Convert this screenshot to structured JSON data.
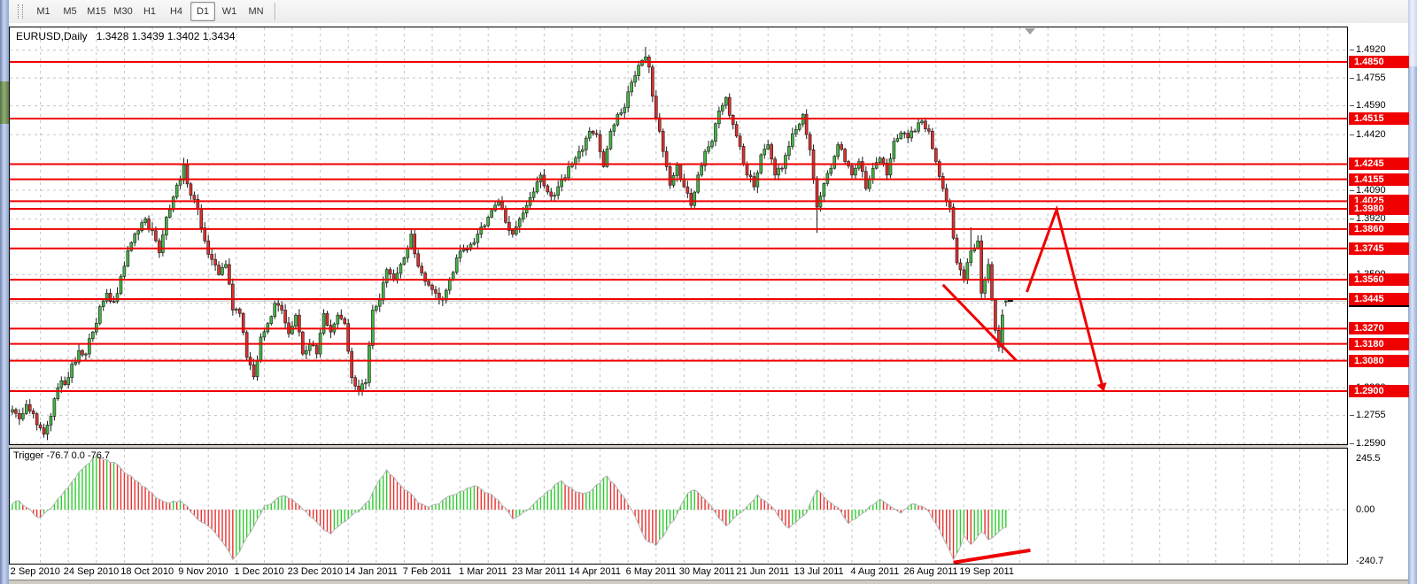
{
  "toolbar": {
    "buttons": [
      "M1",
      "M5",
      "M15",
      "M30",
      "H1",
      "H4",
      "D1",
      "W1",
      "MN"
    ],
    "active": "D1"
  },
  "header": {
    "symbol_label": "EURUSD,Daily",
    "ohlc_text": "1.3428 1.3439 1.3402 1.3434"
  },
  "chart_data": {
    "type": "candlestick",
    "symbol": "EURUSD",
    "timeframe": "Daily",
    "current_bar": {
      "open": 1.3428,
      "high": 1.3439,
      "low": 1.3402,
      "close": 1.3434
    },
    "x_labels": [
      "2 Sep 2010",
      "24 Sep 2010",
      "18 Oct 2010",
      "9 Nov 2010",
      "1 Dec 2010",
      "23 Dec 2010",
      "14 Jan 2011",
      "7 Feb 2011",
      "1 Mar 2011",
      "23 Mar 2011",
      "14 Apr 2011",
      "6 May 2011",
      "30 May 2011",
      "21 Jun 2011",
      "13 Jul 2011",
      "4 Aug 2011",
      "26 Aug 2011",
      "19 Sep 2011"
    ],
    "y_axis": {
      "plain_labels": [
        {
          "text": "1.4920",
          "value": 1.492
        },
        {
          "text": "1.4755",
          "value": 1.4755
        },
        {
          "text": "1.4590",
          "value": 1.459
        },
        {
          "text": "1.4420",
          "value": 1.442
        },
        {
          "text": "1.4090",
          "value": 1.409
        },
        {
          "text": "1.3920",
          "value": 1.392
        },
        {
          "text": "1.3590",
          "value": 1.359
        },
        {
          "text": "1.2920",
          "value": 1.292
        },
        {
          "text": "1.2755",
          "value": 1.2755
        },
        {
          "text": "1.2590",
          "value": 1.259
        }
      ],
      "red_levels": [
        {
          "text": "1.4850",
          "value": 1.485
        },
        {
          "text": "1.4515",
          "value": 1.4515
        },
        {
          "text": "1.4245",
          "value": 1.4245
        },
        {
          "text": "1.4155",
          "value": 1.4155
        },
        {
          "text": "1.4025",
          "value": 1.4025
        },
        {
          "text": "1.3980",
          "value": 1.398
        },
        {
          "text": "1.3860",
          "value": 1.386
        },
        {
          "text": "1.3745",
          "value": 1.3745
        },
        {
          "text": "1.3560",
          "value": 1.356
        },
        {
          "text": "1.3445",
          "value": 1.3445
        },
        {
          "text": "1.3270",
          "value": 1.327
        },
        {
          "text": "1.3180",
          "value": 1.318
        },
        {
          "text": "1.3080",
          "value": 1.308
        },
        {
          "text": "1.2900",
          "value": 1.29
        }
      ],
      "current_price_label": {
        "text": "1.3434",
        "value": 1.3434
      },
      "grid_values": [
        1.492,
        1.4755,
        1.459,
        1.442,
        1.4245,
        1.409,
        1.392,
        1.3745,
        1.359,
        1.342,
        1.327,
        1.309,
        1.292,
        1.2755,
        1.259
      ],
      "price_top": 1.506,
      "price_bottom": 1.258
    },
    "candles": {
      "count": 285,
      "close_pivots": [
        [
          0,
          1.279
        ],
        [
          2,
          1.2735
        ],
        [
          4,
          1.282
        ],
        [
          7,
          1.27
        ],
        [
          9,
          1.2645
        ],
        [
          11,
          1.275
        ],
        [
          13,
          1.292
        ],
        [
          16,
          1.298
        ],
        [
          19,
          1.314
        ],
        [
          21,
          1.312
        ],
        [
          23,
          1.325
        ],
        [
          25,
          1.34
        ],
        [
          27,
          1.348
        ],
        [
          29,
          1.343
        ],
        [
          32,
          1.364
        ],
        [
          34,
          1.378
        ],
        [
          36,
          1.385
        ],
        [
          38,
          1.392
        ],
        [
          40,
          1.385
        ],
        [
          42,
          1.372
        ],
        [
          44,
          1.393
        ],
        [
          46,
          1.405
        ],
        [
          48,
          1.415
        ],
        [
          49,
          1.424
        ],
        [
          51,
          1.406
        ],
        [
          53,
          1.398
        ],
        [
          55,
          1.379
        ],
        [
          57,
          1.368
        ],
        [
          59,
          1.359
        ],
        [
          61,
          1.365
        ],
        [
          63,
          1.338
        ],
        [
          65,
          1.336
        ],
        [
          67,
          1.31
        ],
        [
          69,
          1.2985
        ],
        [
          71,
          1.322
        ],
        [
          73,
          1.33
        ],
        [
          75,
          1.342
        ],
        [
          77,
          1.338
        ],
        [
          79,
          1.324
        ],
        [
          81,
          1.335
        ],
        [
          83,
          1.312
        ],
        [
          85,
          1.318
        ],
        [
          87,
          1.312
        ],
        [
          89,
          1.336
        ],
        [
          91,
          1.325
        ],
        [
          93,
          1.335
        ],
        [
          95,
          1.33
        ],
        [
          97,
          1.298
        ],
        [
          99,
          1.29
        ],
        [
          101,
          1.295
        ],
        [
          103,
          1.338
        ],
        [
          105,
          1.344
        ],
        [
          107,
          1.362
        ],
        [
          109,
          1.356
        ],
        [
          112,
          1.369
        ],
        [
          114,
          1.383
        ],
        [
          116,
          1.364
        ],
        [
          118,
          1.355
        ],
        [
          121,
          1.348
        ],
        [
          123,
          1.344
        ],
        [
          125,
          1.356
        ],
        [
          127,
          1.369
        ],
        [
          129,
          1.374
        ],
        [
          131,
          1.377
        ],
        [
          133,
          1.383
        ],
        [
          135,
          1.388
        ],
        [
          137,
          1.397
        ],
        [
          139,
          1.402
        ],
        [
          141,
          1.39
        ],
        [
          143,
          1.383
        ],
        [
          145,
          1.392
        ],
        [
          147,
          1.4
        ],
        [
          149,
          1.408
        ],
        [
          151,
          1.418
        ],
        [
          153,
          1.408
        ],
        [
          155,
          1.406
        ],
        [
          157,
          1.415
        ],
        [
          159,
          1.423
        ],
        [
          161,
          1.428
        ],
        [
          163,
          1.433
        ],
        [
          165,
          1.444
        ],
        [
          167,
          1.442
        ],
        [
          169,
          1.423
        ],
        [
          171,
          1.444
        ],
        [
          173,
          1.454
        ],
        [
          175,
          1.458
        ],
        [
          177,
          1.473
        ],
        [
          179,
          1.483
        ],
        [
          181,
          1.488
        ],
        [
          182,
          1.482
        ],
        [
          184,
          1.452
        ],
        [
          186,
          1.432
        ],
        [
          188,
          1.412
        ],
        [
          190,
          1.424
        ],
        [
          192,
          1.411
        ],
        [
          194,
          1.4
        ],
        [
          196,
          1.418
        ],
        [
          198,
          1.432
        ],
        [
          200,
          1.438
        ],
        [
          202,
          1.456
        ],
        [
          204,
          1.464
        ],
        [
          206,
          1.448
        ],
        [
          208,
          1.435
        ],
        [
          210,
          1.418
        ],
        [
          212,
          1.411
        ],
        [
          214,
          1.43
        ],
        [
          216,
          1.436
        ],
        [
          218,
          1.418
        ],
        [
          220,
          1.422
        ],
        [
          222,
          1.435
        ],
        [
          224,
          1.445
        ],
        [
          226,
          1.454
        ],
        [
          228,
          1.433
        ],
        [
          230,
          1.399
        ],
        [
          232,
          1.413
        ],
        [
          234,
          1.422
        ],
        [
          236,
          1.436
        ],
        [
          238,
          1.426
        ],
        [
          240,
          1.418
        ],
        [
          242,
          1.426
        ],
        [
          244,
          1.41
        ],
        [
          246,
          1.422
        ],
        [
          248,
          1.428
        ],
        [
          250,
          1.418
        ],
        [
          252,
          1.438
        ],
        [
          254,
          1.443
        ],
        [
          256,
          1.44
        ],
        [
          258,
          1.444
        ],
        [
          260,
          1.45
        ],
        [
          262,
          1.444
        ],
        [
          264,
          1.426
        ],
        [
          266,
          1.41
        ],
        [
          268,
          1.399
        ],
        [
          270,
          1.366
        ],
        [
          272,
          1.356
        ],
        [
          274,
          1.373
        ],
        [
          276,
          1.379
        ],
        [
          277,
          1.348
        ],
        [
          278,
          1.356
        ],
        [
          279,
          1.365
        ],
        [
          280,
          1.344
        ],
        [
          281,
          1.326
        ],
        [
          282,
          1.316
        ],
        [
          283,
          1.335
        ],
        [
          284,
          1.3434
        ]
      ],
      "wick_overrides": {
        "49": {
          "high": 1.4282
        },
        "99": {
          "low": 1.2874
        },
        "181": {
          "high": 1.494
        },
        "230": {
          "low": 1.3837
        },
        "274": {
          "high": 1.387
        },
        "282": {
          "low": 1.3134
        }
      }
    },
    "indicator": {
      "label": "Trigger -76.7 0.0 -76.7",
      "name": "Trigger",
      "values_text": [
        "-76.7",
        "0.0",
        "-76.7"
      ],
      "scale_max": "245.5",
      "scale_zero": "0.00",
      "scale_min": "-240.7",
      "value_pivots": [
        [
          0,
          25
        ],
        [
          2,
          38
        ],
        [
          4,
          10
        ],
        [
          6,
          -18
        ],
        [
          8,
          -35
        ],
        [
          11,
          5
        ],
        [
          14,
          60
        ],
        [
          17,
          120
        ],
        [
          20,
          175
        ],
        [
          24,
          230
        ],
        [
          27,
          215
        ],
        [
          30,
          195
        ],
        [
          33,
          150
        ],
        [
          36,
          120
        ],
        [
          39,
          80
        ],
        [
          42,
          45
        ],
        [
          45,
          28
        ],
        [
          48,
          40
        ],
        [
          50,
          15
        ],
        [
          52,
          -25
        ],
        [
          55,
          -60
        ],
        [
          58,
          -100
        ],
        [
          61,
          -160
        ],
        [
          63,
          -215
        ],
        [
          65,
          -180
        ],
        [
          67,
          -120
        ],
        [
          70,
          -40
        ],
        [
          72,
          15
        ],
        [
          75,
          40
        ],
        [
          78,
          60
        ],
        [
          80,
          45
        ],
        [
          82,
          20
        ],
        [
          85,
          -30
        ],
        [
          88,
          -70
        ],
        [
          91,
          -105
        ],
        [
          94,
          -60
        ],
        [
          97,
          -25
        ],
        [
          99,
          -10
        ],
        [
          102,
          40
        ],
        [
          105,
          130
        ],
        [
          107,
          172
        ],
        [
          110,
          120
        ],
        [
          113,
          80
        ],
        [
          116,
          30
        ],
        [
          119,
          10
        ],
        [
          122,
          25
        ],
        [
          125,
          60
        ],
        [
          128,
          80
        ],
        [
          131,
          95
        ],
        [
          133,
          100
        ],
        [
          136,
          70
        ],
        [
          139,
          40
        ],
        [
          141,
          5
        ],
        [
          143,
          -40
        ],
        [
          145,
          -25
        ],
        [
          147,
          -5
        ],
        [
          150,
          40
        ],
        [
          153,
          80
        ],
        [
          157,
          125
        ],
        [
          160,
          90
        ],
        [
          163,
          70
        ],
        [
          166,
          90
        ],
        [
          170,
          145
        ],
        [
          173,
          90
        ],
        [
          175,
          50
        ],
        [
          178,
          -30
        ],
        [
          181,
          -130
        ],
        [
          184,
          -155
        ],
        [
          187,
          -90
        ],
        [
          190,
          -20
        ],
        [
          193,
          70
        ],
        [
          195,
          85
        ],
        [
          198,
          45
        ],
        [
          201,
          -15
        ],
        [
          204,
          -70
        ],
        [
          206,
          -40
        ],
        [
          209,
          -5
        ],
        [
          213,
          65
        ],
        [
          215,
          40
        ],
        [
          217,
          15
        ],
        [
          220,
          -50
        ],
        [
          222,
          -80
        ],
        [
          224,
          -55
        ],
        [
          227,
          -15
        ],
        [
          230,
          85
        ],
        [
          233,
          40
        ],
        [
          236,
          10
        ],
        [
          239,
          -60
        ],
        [
          241,
          -40
        ],
        [
          243,
          -15
        ],
        [
          246,
          20
        ],
        [
          248,
          45
        ],
        [
          250,
          25
        ],
        [
          252,
          5
        ],
        [
          254,
          -15
        ],
        [
          256,
          10
        ],
        [
          258,
          25
        ],
        [
          260,
          15
        ],
        [
          262,
          -10
        ],
        [
          264,
          -60
        ],
        [
          266,
          -120
        ],
        [
          269,
          -215
        ],
        [
          271,
          -160
        ],
        [
          272,
          -110
        ],
        [
          274,
          -150
        ],
        [
          277,
          -95
        ],
        [
          279,
          -130
        ],
        [
          282,
          -95
        ],
        [
          284,
          -77
        ]
      ]
    },
    "annotations": {
      "color": "#ee0000",
      "line_width": 3,
      "main_trendline": {
        "i1": 266,
        "p1": 1.353,
        "i2": 287,
        "p2": 1.308
      },
      "zigzag_arrow": [
        [
          290,
          1.3487
        ],
        [
          298.5,
          1.3975
        ],
        [
          312,
          1.2896
        ]
      ],
      "indicator_trendline": {
        "i1": 269,
        "v1": -228,
        "i2": 291,
        "v2": -175
      }
    },
    "colors": {
      "bull": "#44b544",
      "bear": "#dd2f2f",
      "wick": "#1a1a1a",
      "grid": "#c4c4c4",
      "level_red": "#f00000",
      "envelope": "#b4b4b4",
      "bid_line": "#bdbdbd"
    }
  }
}
